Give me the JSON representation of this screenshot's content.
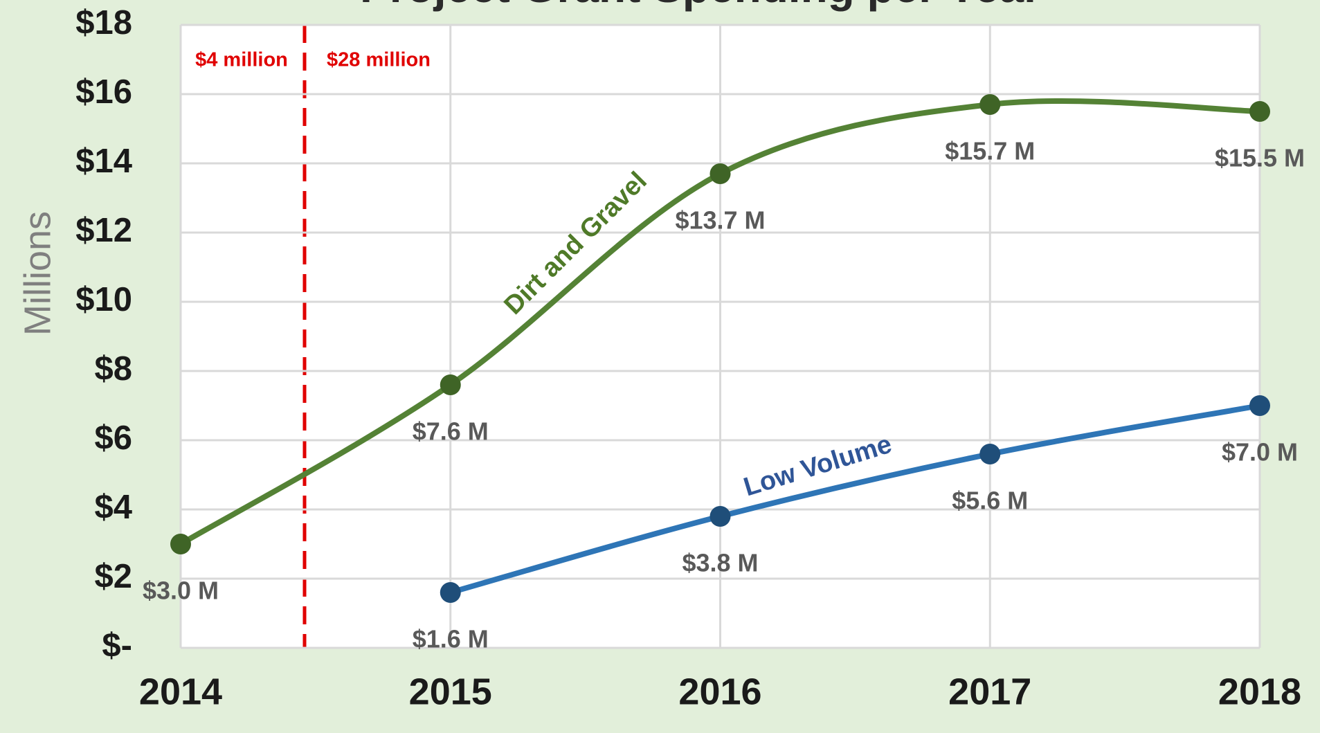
{
  "chart_data": {
    "type": "line",
    "title": "Project Grant Spending per Year",
    "y_label": "Millions",
    "categories": [
      "2014",
      "2015",
      "2016",
      "2017",
      "2018"
    ],
    "series": [
      {
        "name": "Dirt and Gravel",
        "color": "#548235",
        "marker_color": "#3f6426",
        "label_color": "#4f7a28",
        "values": [
          3.0,
          7.6,
          13.7,
          15.7,
          15.5
        ],
        "value_labels": [
          "$3.0 M",
          "$7.6 M",
          "$13.7 M",
          "$15.7 M",
          "$15.5 M"
        ]
      },
      {
        "name": "Low Volume",
        "color": "#2e75b6",
        "marker_color": "#1f4e79",
        "label_color": "#2f5597",
        "values": [
          null,
          1.6,
          3.8,
          5.6,
          7.0
        ],
        "value_labels": [
          null,
          "$1.6 M",
          "$3.8 M",
          "$5.6 M",
          "$7.0 M"
        ]
      }
    ],
    "ylim": [
      0,
      18
    ],
    "yticks": [
      {
        "value": 0,
        "label": "$-"
      },
      {
        "value": 2,
        "label": "$2"
      },
      {
        "value": 4,
        "label": "$4"
      },
      {
        "value": 6,
        "label": "$6"
      },
      {
        "value": 8,
        "label": "$8"
      },
      {
        "value": 10,
        "label": "$10"
      },
      {
        "value": 12,
        "label": "$12"
      },
      {
        "value": 14,
        "label": "$14"
      },
      {
        "value": 16,
        "label": "$16"
      },
      {
        "value": 18,
        "label": "$18"
      }
    ],
    "grid": true,
    "annotations": [
      "$4 million",
      "$28 million"
    ]
  }
}
